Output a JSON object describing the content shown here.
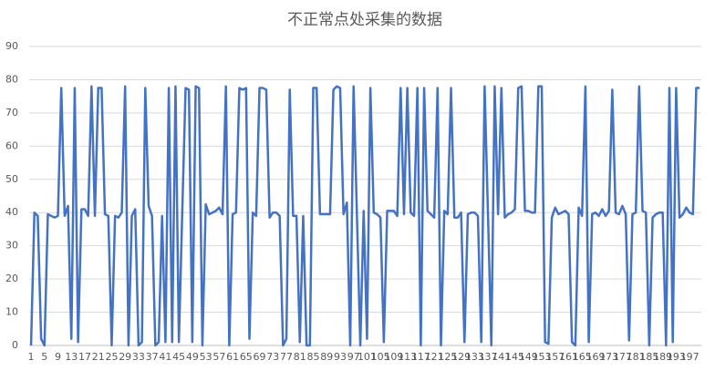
{
  "chart_data": {
    "type": "line",
    "title": "不正常点处采集的数据",
    "categories": [
      "1",
      null,
      null,
      null,
      "5",
      null,
      null,
      null,
      "9",
      null,
      null,
      null,
      "13",
      null,
      null,
      null,
      "17",
      null,
      null,
      null,
      "21",
      null,
      null,
      null,
      "25",
      null,
      null,
      null,
      "29",
      null,
      null,
      null,
      "33",
      null,
      null,
      null,
      "37",
      null,
      null,
      null,
      "41",
      null,
      null,
      null,
      "45",
      null,
      null,
      null,
      "49",
      null,
      null,
      null,
      "53",
      null,
      null,
      null,
      "57",
      null,
      null,
      null,
      "61",
      null,
      null,
      null,
      "65",
      null,
      null,
      null,
      "69",
      null,
      null,
      null,
      "73",
      null,
      null,
      null,
      "77",
      null,
      null,
      null,
      "81",
      null,
      null,
      null,
      "85",
      null,
      null,
      null,
      "89",
      null,
      null,
      null,
      "93",
      null,
      null,
      null,
      "97",
      null,
      null,
      null,
      "101",
      null,
      null,
      null,
      "105",
      null,
      null,
      null,
      "109",
      null,
      null,
      null,
      "113",
      null,
      null,
      null,
      "117",
      null,
      null,
      null,
      "121",
      null,
      null,
      null,
      "125",
      null,
      null,
      null,
      "129",
      null,
      null,
      null,
      "133",
      null,
      null,
      null,
      "137",
      null,
      null,
      null,
      "141",
      null,
      null,
      null,
      "145",
      null,
      null,
      null,
      "149",
      null,
      null,
      null,
      "153",
      null,
      null,
      null,
      "157",
      null,
      null,
      null,
      "161",
      null,
      null,
      null,
      "165",
      null,
      null,
      null,
      "169",
      null,
      null,
      null,
      "173",
      null,
      null,
      null,
      "177",
      null,
      null,
      null,
      "181",
      null,
      null,
      null,
      "185",
      null,
      null,
      null,
      "189",
      null,
      null,
      null,
      "193",
      null,
      null,
      null,
      "197",
      null,
      null,
      null
    ],
    "values": [
      0,
      40,
      39,
      2,
      0,
      39.5,
      39,
      38.5,
      39,
      77.5,
      39,
      42,
      2,
      77.5,
      1,
      41,
      41,
      39,
      78,
      39,
      77.5,
      77.5,
      39.5,
      39,
      0,
      39,
      38.5,
      40,
      78,
      0,
      39,
      41,
      0,
      1,
      77.5,
      42,
      39,
      0,
      1,
      39,
      1,
      77.5,
      1,
      78,
      1,
      40,
      77.5,
      77,
      1,
      78,
      77.5,
      0,
      42.5,
      39.5,
      40,
      40.5,
      41.5,
      39.5,
      78,
      0,
      39.5,
      40,
      77.5,
      77,
      77.5,
      2,
      40,
      39,
      77.5,
      77.5,
      77,
      38.5,
      40,
      40,
      39,
      0,
      2,
      77,
      39,
      39,
      1,
      39,
      0,
      0,
      77.5,
      77.5,
      39.5,
      39.5,
      39.5,
      39.5,
      77,
      78,
      77.5,
      39.5,
      43,
      0,
      78,
      39,
      0,
      40.5,
      2,
      77.5,
      40,
      39.5,
      38.5,
      1,
      40.5,
      40.5,
      40.5,
      39,
      77.5,
      39.5,
      77.5,
      40,
      39,
      77.5,
      0,
      77.5,
      40.5,
      39.5,
      38.5,
      77.5,
      0,
      40.5,
      39.5,
      77.5,
      38.5,
      38.5,
      40,
      1,
      39.5,
      40,
      40,
      39,
      1,
      78,
      39.5,
      0,
      78,
      39.5,
      77.5,
      38.5,
      39.5,
      40,
      41,
      77.5,
      78,
      40.5,
      40.5,
      40,
      40,
      78,
      78,
      1,
      0.5,
      38.5,
      41.5,
      39.5,
      40,
      40.5,
      39.5,
      1,
      0,
      41.5,
      39,
      78,
      1,
      39.5,
      40,
      39,
      41,
      39,
      40.5,
      77,
      40,
      39.5,
      42,
      39.5,
      1.5,
      39.5,
      40,
      78,
      40.5,
      40,
      0,
      38.5,
      39.5,
      40,
      40,
      0,
      77.5,
      1,
      77.5,
      38.5,
      39.5,
      41.5,
      40,
      39.5,
      77.5,
      77.5
    ],
    "color": "#4472c4",
    "ylim": [
      0,
      90
    ],
    "yticks": [
      0,
      10,
      20,
      30,
      40,
      50,
      60,
      70,
      80,
      90
    ],
    "grid": true
  }
}
